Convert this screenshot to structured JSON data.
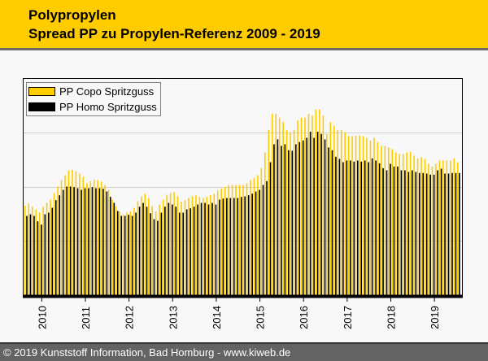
{
  "header": {
    "title": "Polypropylen",
    "subtitle": "Spread PP zu Propylen-Referenz 2009 - 2019"
  },
  "footer": {
    "text": "© 2019 Kunststoff Information, Bad Homburg - www.kiweb.de"
  },
  "colors": {
    "brand": "#ffcc00",
    "copo": "#ffcc00",
    "homo": "#000000",
    "grid": "#d0d0d0"
  },
  "chart_data": {
    "type": "bar",
    "title": "Spread PP zu Propylen-Referenz 2009 - 2019",
    "xlabel": "",
    "ylabel": "",
    "x_start": "2009-08",
    "frequency": "monthly",
    "tick_labels": [
      "2010",
      "2011",
      "2012",
      "2013",
      "2014",
      "2015",
      "2016",
      "2017",
      "2018",
      "2019"
    ],
    "ylim": [
      0,
      4
    ],
    "grid": true,
    "gridlines": [
      1,
      2,
      3
    ],
    "legend_position": "top-left",
    "series": [
      {
        "name": "PP Copo Spritzguss",
        "color": "#ffcc00",
        "values": [
          1.65,
          1.69,
          1.63,
          1.58,
          1.52,
          1.63,
          1.7,
          1.76,
          1.88,
          2.0,
          2.12,
          2.21,
          2.3,
          2.31,
          2.28,
          2.24,
          2.18,
          2.06,
          2.1,
          2.13,
          2.12,
          2.09,
          2.03,
          1.94,
          1.76,
          1.64,
          1.54,
          1.49,
          1.52,
          1.54,
          1.61,
          1.73,
          1.82,
          1.87,
          1.79,
          1.64,
          1.54,
          1.67,
          1.76,
          1.85,
          1.88,
          1.9,
          1.82,
          1.72,
          1.75,
          1.79,
          1.82,
          1.84,
          1.81,
          1.79,
          1.81,
          1.84,
          1.87,
          1.93,
          1.96,
          1.99,
          2.03,
          2.03,
          2.03,
          2.03,
          2.03,
          2.06,
          2.12,
          2.16,
          2.21,
          2.34,
          2.63,
          3.04,
          3.34,
          3.34,
          3.27,
          3.19,
          3.04,
          3.0,
          3.04,
          3.22,
          3.27,
          3.27,
          3.34,
          3.31,
          3.42,
          3.42,
          3.31,
          2.97,
          3.19,
          3.12,
          3.04,
          3.04,
          3.0,
          2.93,
          2.93,
          2.94,
          2.94,
          2.93,
          2.9,
          2.85,
          2.9,
          2.82,
          2.75,
          2.75,
          2.72,
          2.69,
          2.63,
          2.6,
          2.6,
          2.63,
          2.64,
          2.57,
          2.52,
          2.54,
          2.51,
          2.42,
          2.37,
          2.42,
          2.48,
          2.48,
          2.48,
          2.48,
          2.52,
          2.45
        ]
      },
      {
        "name": "PP Homo Spritzguss",
        "color": "#000000",
        "values": [
          1.46,
          1.49,
          1.46,
          1.36,
          1.3,
          1.49,
          1.52,
          1.61,
          1.75,
          1.84,
          1.94,
          2.0,
          2.0,
          1.99,
          1.97,
          1.94,
          1.97,
          1.97,
          1.99,
          1.97,
          1.97,
          1.96,
          1.91,
          1.81,
          1.7,
          1.55,
          1.46,
          1.46,
          1.48,
          1.46,
          1.52,
          1.63,
          1.7,
          1.63,
          1.51,
          1.4,
          1.37,
          1.52,
          1.63,
          1.7,
          1.67,
          1.63,
          1.52,
          1.52,
          1.58,
          1.6,
          1.63,
          1.67,
          1.7,
          1.7,
          1.67,
          1.7,
          1.67,
          1.76,
          1.78,
          1.79,
          1.79,
          1.79,
          1.79,
          1.81,
          1.82,
          1.84,
          1.87,
          1.91,
          1.94,
          2.03,
          2.1,
          2.45,
          2.78,
          2.87,
          2.75,
          2.78,
          2.67,
          2.66,
          2.78,
          2.82,
          2.85,
          2.9,
          3.01,
          2.9,
          3.01,
          2.97,
          2.87,
          2.72,
          2.67,
          2.55,
          2.51,
          2.45,
          2.48,
          2.48,
          2.46,
          2.48,
          2.46,
          2.48,
          2.45,
          2.52,
          2.48,
          2.43,
          2.34,
          2.3,
          2.42,
          2.37,
          2.37,
          2.3,
          2.3,
          2.27,
          2.3,
          2.27,
          2.25,
          2.25,
          2.24,
          2.22,
          2.22,
          2.3,
          2.33,
          2.24,
          2.24,
          2.25,
          2.25,
          2.25
        ]
      }
    ]
  }
}
